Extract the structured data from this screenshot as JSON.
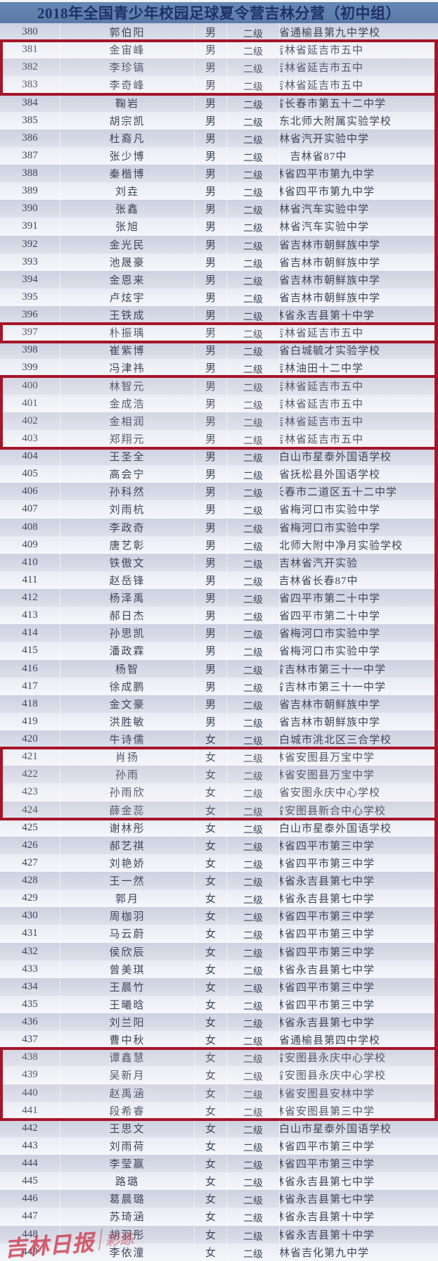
{
  "title": "2018年全国青少年校园足球夏令营吉林分营（初中组）",
  "watermark": {
    "primary": "吉林日报",
    "secondary": "彩练"
  },
  "colors": {
    "header_bg": "#5b7aa8",
    "header_text": "#1e3168",
    "row_dark": "#d3d6e4",
    "row_light": "#eef0f6",
    "row_text": "#40455a",
    "highlight_border": "#a51529",
    "watermark_red": "#cc3b4e"
  },
  "highlights": [
    {
      "from": 381,
      "to": 383
    },
    {
      "from": 397,
      "to": 397
    },
    {
      "from": 400,
      "to": 403
    },
    {
      "from": 421,
      "to": 424
    },
    {
      "from": 438,
      "to": 441
    }
  ],
  "first_row_no": 380,
  "rows": [
    {
      "no": "380",
      "name": "郭伯阳",
      "gender": "男",
      "level": "二级",
      "school": "吉林省通榆县第九中学校"
    },
    {
      "no": "381",
      "name": "金宙峰",
      "gender": "男",
      "level": "二级",
      "school": "吉林省延吉市五中"
    },
    {
      "no": "382",
      "name": "李珍镐",
      "gender": "男",
      "level": "二级",
      "school": "吉林省延吉市五中"
    },
    {
      "no": "383",
      "name": "李奇峰",
      "gender": "男",
      "level": "二级",
      "school": "吉林省延吉市五中"
    },
    {
      "no": "384",
      "name": "鞠岩",
      "gender": "男",
      "level": "二级",
      "school": "吉林省长春市第五十二中学"
    },
    {
      "no": "385",
      "name": "胡宗凯",
      "gender": "男",
      "level": "二级",
      "school": "吉林省东北师大附属实验学校"
    },
    {
      "no": "386",
      "name": "杜裔凡",
      "gender": "男",
      "level": "二级",
      "school": "吉林省汽开实验中学"
    },
    {
      "no": "387",
      "name": "张少博",
      "gender": "男",
      "level": "二级",
      "school": "吉林省87中"
    },
    {
      "no": "388",
      "name": "秦楷博",
      "gender": "男",
      "level": "二级",
      "school": "吉林省四平市第九中学"
    },
    {
      "no": "389",
      "name": "刘垚",
      "gender": "男",
      "level": "二级",
      "school": "吉林省四平市第九中学"
    },
    {
      "no": "390",
      "name": "张鑫",
      "gender": "男",
      "level": "二级",
      "school": "吉林省汽车实验中学"
    },
    {
      "no": "391",
      "name": "张旭",
      "gender": "男",
      "level": "二级",
      "school": "吉林省汽车实验中学"
    },
    {
      "no": "392",
      "name": "金光民",
      "gender": "男",
      "level": "二级",
      "school": "吉林省吉林市朝鲜族中学"
    },
    {
      "no": "393",
      "name": "池晟豪",
      "gender": "男",
      "level": "二级",
      "school": "吉林省吉林市朝鲜族中学"
    },
    {
      "no": "394",
      "name": "金恩来",
      "gender": "男",
      "level": "二级",
      "school": "吉林省吉林市朝鲜族中学"
    },
    {
      "no": "395",
      "name": "卢炫宇",
      "gender": "男",
      "level": "二级",
      "school": "吉林省吉林市朝鲜族中学"
    },
    {
      "no": "396",
      "name": "王铁成",
      "gender": "男",
      "level": "二级",
      "school": "吉林省永吉县第十中学"
    },
    {
      "no": "397",
      "name": "朴振瑀",
      "gender": "男",
      "level": "二级",
      "school": "吉林省延吉市五中"
    },
    {
      "no": "398",
      "name": "崔紫博",
      "gender": "男",
      "level": "二级",
      "school": "吉林省白城毓才实验学校"
    },
    {
      "no": "399",
      "name": "冯津祎",
      "gender": "男",
      "level": "二级",
      "school": "吉林油田十二中学"
    },
    {
      "no": "400",
      "name": "林智元",
      "gender": "男",
      "level": "二级",
      "school": "吉林省延吉市五中"
    },
    {
      "no": "401",
      "name": "金成浩",
      "gender": "男",
      "level": "二级",
      "school": "吉林省延吉市五中"
    },
    {
      "no": "402",
      "name": "金相润",
      "gender": "男",
      "level": "二级",
      "school": "吉林省延吉市五中"
    },
    {
      "no": "403",
      "name": "郑翔元",
      "gender": "男",
      "level": "二级",
      "school": "吉林省延吉市五中"
    },
    {
      "no": "404",
      "name": "王圣全",
      "gender": "男",
      "level": "二级",
      "school": "吉林省白山市星泰外国语学校"
    },
    {
      "no": "405",
      "name": "高会宁",
      "gender": "男",
      "level": "二级",
      "school": "吉林省抚松县外国语学校"
    },
    {
      "no": "406",
      "name": "孙科然",
      "gender": "男",
      "level": "二级",
      "school": "吉林省长春市二道区五十二中学"
    },
    {
      "no": "407",
      "name": "刘雨杭",
      "gender": "男",
      "level": "二级",
      "school": "吉林省梅河口市实验中学"
    },
    {
      "no": "408",
      "name": "李政奇",
      "gender": "男",
      "level": "二级",
      "school": "吉林省梅河口市实验中学"
    },
    {
      "no": "409",
      "name": "唐艺彰",
      "gender": "男",
      "level": "二级",
      "school": "吉林省东北师大附中净月实验学校"
    },
    {
      "no": "410",
      "name": "铁傲文",
      "gender": "男",
      "level": "二级",
      "school": "吉林省汽开实验"
    },
    {
      "no": "411",
      "name": "赵岳锋",
      "gender": "男",
      "level": "二级",
      "school": "吉林省长春87中"
    },
    {
      "no": "412",
      "name": "杨泽禹",
      "gender": "男",
      "level": "二级",
      "school": "吉林省四平市第二十中学"
    },
    {
      "no": "413",
      "name": "郝日杰",
      "gender": "男",
      "level": "二级",
      "school": "吉林省四平市第二十中学"
    },
    {
      "no": "414",
      "name": "孙思凯",
      "gender": "男",
      "level": "二级",
      "school": "吉林省梅河口市实验中学"
    },
    {
      "no": "415",
      "name": "潘政霖",
      "gender": "男",
      "level": "二级",
      "school": "吉林省梅河口市实验中学"
    },
    {
      "no": "416",
      "name": "杨智",
      "gender": "男",
      "level": "二级",
      "school": "吉林省吉林市第三十一中学"
    },
    {
      "no": "417",
      "name": "徐成鹏",
      "gender": "男",
      "level": "二级",
      "school": "吉林省吉林市第三十一中学"
    },
    {
      "no": "418",
      "name": "金文豪",
      "gender": "男",
      "level": "二级",
      "school": "吉林省吉林市朝鲜族中学"
    },
    {
      "no": "419",
      "name": "洪胜敏",
      "gender": "男",
      "level": "二级",
      "school": "吉林省吉林市朝鲜族中学"
    },
    {
      "no": "420",
      "name": "牛诗儒",
      "gender": "女",
      "level": "二级",
      "school": "吉林省白城市洮北区三合学校"
    },
    {
      "no": "421",
      "name": "肖扬",
      "gender": "女",
      "level": "二级",
      "school": "吉林省安图县万宝中学"
    },
    {
      "no": "422",
      "name": "孙雨",
      "gender": "女",
      "level": "二级",
      "school": "吉林省安图县万宝中学"
    },
    {
      "no": "423",
      "name": "孙雨欣",
      "gender": "女",
      "level": "二级",
      "school": "吉林省安图永庆中心学校"
    },
    {
      "no": "424",
      "name": "薛金蕊",
      "gender": "女",
      "level": "二级",
      "school": "吉林省安图县新合中心学校"
    },
    {
      "no": "425",
      "name": "谢林彤",
      "gender": "女",
      "level": "二级",
      "school": "吉林省白山市星泰外国语学校"
    },
    {
      "no": "426",
      "name": "郝艺祺",
      "gender": "女",
      "level": "二级",
      "school": "吉林省四平市第三中学"
    },
    {
      "no": "427",
      "name": "刘艳娇",
      "gender": "女",
      "level": "二级",
      "school": "吉林省四平市第三中学"
    },
    {
      "no": "428",
      "name": "王一然",
      "gender": "女",
      "level": "二级",
      "school": "吉林省永吉县第七中学"
    },
    {
      "no": "429",
      "name": "郭月",
      "gender": "女",
      "level": "二级",
      "school": "吉林省永吉县第七中学"
    },
    {
      "no": "430",
      "name": "周枷羽",
      "gender": "女",
      "level": "二级",
      "school": "吉林省四平市第三中学"
    },
    {
      "no": "431",
      "name": "马云蔚",
      "gender": "女",
      "level": "二级",
      "school": "吉林省四平市第三中学"
    },
    {
      "no": "432",
      "name": "侯欣辰",
      "gender": "女",
      "level": "二级",
      "school": "吉林省四平市第三中学"
    },
    {
      "no": "433",
      "name": "曾美琪",
      "gender": "女",
      "level": "二级",
      "school": "吉林省永吉县第七中学"
    },
    {
      "no": "434",
      "name": "王晨竹",
      "gender": "女",
      "level": "二级",
      "school": "吉林省四平市第三中学"
    },
    {
      "no": "435",
      "name": "王曦晗",
      "gender": "女",
      "level": "二级",
      "school": "吉林省四平市第三中学"
    },
    {
      "no": "436",
      "name": "刘兰阳",
      "gender": "女",
      "level": "二级",
      "school": "吉林省永吉县第七中学"
    },
    {
      "no": "437",
      "name": "曹中秋",
      "gender": "女",
      "level": "二级",
      "school": "吉林省通榆县第四中学校"
    },
    {
      "no": "438",
      "name": "谭鑫慧",
      "gender": "女",
      "level": "二级",
      "school": "吉林省安图县永庆中心学校"
    },
    {
      "no": "439",
      "name": "吴新月",
      "gender": "女",
      "level": "二级",
      "school": "吉林省安图县永庆中心学校"
    },
    {
      "no": "440",
      "name": "赵禹涵",
      "gender": "女",
      "level": "二级",
      "school": "吉林省安图县安林中学"
    },
    {
      "no": "441",
      "name": "段希睿",
      "gender": "女",
      "level": "二级",
      "school": "吉林省安图县第三中学"
    },
    {
      "no": "442",
      "name": "王思文",
      "gender": "女",
      "level": "二级",
      "school": "吉林省白山市星泰外国语学校"
    },
    {
      "no": "443",
      "name": "刘雨荷",
      "gender": "女",
      "level": "二级",
      "school": "吉林省四平市第三中学"
    },
    {
      "no": "444",
      "name": "李莹赢",
      "gender": "女",
      "level": "二级",
      "school": "吉林省四平市第三中学"
    },
    {
      "no": "445",
      "name": "路璐",
      "gender": "女",
      "level": "二级",
      "school": "吉林省永吉县第七中学"
    },
    {
      "no": "446",
      "name": "葛晨璐",
      "gender": "女",
      "level": "二级",
      "school": "吉林省永吉县第七中学"
    },
    {
      "no": "447",
      "name": "苏琦涵",
      "gender": "女",
      "level": "二级",
      "school": "吉林省永吉县第十中学"
    },
    {
      "no": "448",
      "name": "胡羽彤",
      "gender": "女",
      "level": "二级",
      "school": "吉林省永吉县第十中学"
    },
    {
      "no": "449",
      "name": "李依潼",
      "gender": "女",
      "level": "二级",
      "school": "吉林省吉化第九中学"
    }
  ]
}
